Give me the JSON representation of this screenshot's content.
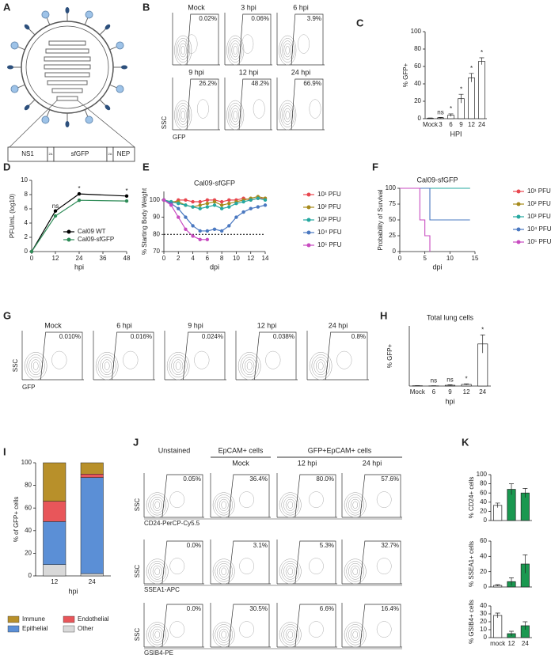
{
  "panel_labels": [
    "A",
    "B",
    "C",
    "D",
    "E",
    "F",
    "G",
    "H",
    "I",
    "J",
    "K"
  ],
  "diagram": {
    "segments": [
      "NS1",
      "2A",
      "sfGFP",
      "2A",
      "NEP"
    ]
  },
  "flow_panels": [
    {
      "x_label": "GFP",
      "y_label": "SSC",
      "plots": [
        {
          "title": "Mock",
          "percent": "0.02%"
        },
        {
          "title": "3 hpi",
          "percent": "0.06%"
        },
        {
          "title": "6 hpi",
          "percent": "3.9%"
        },
        {
          "title": "9 hpi",
          "percent": "26.2%"
        },
        {
          "title": "12 hpi",
          "percent": "48.2%"
        },
        {
          "title": "24 hpi",
          "percent": "66.9%"
        }
      ]
    },
    {
      "x_label": "GFP",
      "y_label": "SSC",
      "plots": [
        {
          "title": "Mock",
          "percent": "0.010%"
        },
        {
          "title": "6 hpi",
          "percent": "0.016%"
        },
        {
          "title": "9 hpi",
          "percent": "0.024%"
        },
        {
          "title": "12 hpi",
          "percent": "0.038%"
        },
        {
          "title": "24 hpi",
          "percent": "0.8%"
        }
      ]
    },
    {
      "headers": [
        "Unstained",
        "EpCAM+ cells",
        "GFP+EpCAM+ cells"
      ],
      "subheaders": [
        "Mock",
        "12 hpi",
        "24 hpi"
      ],
      "y_label": "SSC",
      "rows": [
        {
          "x_label": "CD24-PerCP-Cy5.5",
          "percents": [
            "0.05%",
            "36.4%",
            "80.0%",
            "57.6%"
          ]
        },
        {
          "x_label": "SSEA1-APC",
          "percents": [
            "0.0%",
            "3.1%",
            "5.3%",
            "32.7%"
          ]
        },
        {
          "x_label": "GSIB4-PE",
          "percents": [
            "0.0%",
            "30.5%",
            "6.6%",
            "16.4%"
          ]
        }
      ]
    }
  ],
  "chart_data": [
    {
      "type": "bar",
      "y_label": "% GFP+",
      "x_label": "HPI",
      "categories": [
        "Mock",
        "3",
        "6",
        "9",
        "12",
        "24"
      ],
      "values": [
        0.5,
        1,
        4,
        23,
        47,
        66
      ],
      "errors": [
        0.3,
        0.5,
        1.5,
        5,
        5,
        4
      ],
      "significance": [
        null,
        "ns",
        "*",
        "*",
        "*",
        "*"
      ],
      "color": "#ffffff",
      "ylim": [
        0,
        100
      ],
      "yticks": [
        0,
        20,
        40,
        60,
        80,
        100
      ]
    },
    {
      "type": "line",
      "y_label": "PFU/mL (log10)",
      "x_label": "hpi",
      "x": [
        0,
        12,
        24,
        48
      ],
      "series": [
        {
          "name": "Cal09 WT",
          "color": "#000000",
          "values": [
            0,
            5.7,
            8.1,
            7.8
          ]
        },
        {
          "name": "Cal09-sfGFP",
          "color": "#2e8b57",
          "values": [
            0,
            5,
            7.2,
            7.1
          ]
        }
      ],
      "significance": [
        null,
        "ns",
        "*",
        "*"
      ],
      "xlim": [
        0,
        48
      ],
      "xticks": [
        0,
        12,
        24,
        36,
        48
      ],
      "ylim": [
        0,
        10
      ],
      "yticks": [
        0,
        2,
        4,
        6,
        8,
        10
      ],
      "legend": "lower-right"
    },
    {
      "type": "line",
      "title": "Cal09-sfGFP",
      "y_label": "% Starting Body Weight",
      "x_label": "dpi",
      "x": [
        0,
        1,
        2,
        3,
        4,
        5,
        6,
        7,
        8,
        9,
        10,
        11,
        12,
        13,
        14
      ],
      "series": [
        {
          "name": "10¹ PFU",
          "color": "#e8474f",
          "values": [
            100,
            98,
            100,
            100,
            99,
            99,
            100,
            100,
            99,
            100,
            100,
            101,
            100,
            101,
            101
          ]
        },
        {
          "name": "10² PFU",
          "color": "#a68a1c",
          "values": [
            100,
            99,
            99,
            97,
            96,
            97,
            98,
            99,
            97,
            98,
            99,
            100,
            101,
            102,
            101
          ]
        },
        {
          "name": "10³ PFU",
          "color": "#25a8a0",
          "values": [
            100,
            99,
            98,
            97,
            96,
            95,
            96,
            97,
            95,
            96,
            98,
            99,
            100,
            101,
            100
          ]
        },
        {
          "name": "10⁴ PFU",
          "color": "#4a78c0",
          "values": [
            100,
            98,
            95,
            90,
            85,
            82,
            82,
            83,
            82,
            85,
            90,
            93,
            95,
            96,
            97
          ]
        },
        {
          "name": "10⁵ PFU",
          "color": "#c84bc0",
          "values": [
            100,
            97,
            90,
            83,
            79,
            77,
            77,
            null,
            null,
            null,
            null,
            null,
            null,
            null,
            null
          ]
        }
      ],
      "reference_line": 80,
      "xlim": [
        0,
        14
      ],
      "xticks": [
        0,
        2,
        4,
        6,
        8,
        10,
        12,
        14
      ],
      "ylim": [
        70,
        105
      ],
      "yticks": [
        70,
        80,
        90,
        100
      ],
      "legend": "right"
    },
    {
      "type": "step",
      "title": "Cal09-sfGFP",
      "y_label": "Probability of Survival",
      "x_label": "dpi",
      "x": [
        0,
        4,
        5,
        6,
        14
      ],
      "series": [
        {
          "name": "10¹ PFU",
          "color": "#e8474f",
          "values": [
            100,
            100,
            100,
            100,
            100
          ]
        },
        {
          "name": "10² PFU",
          "color": "#a68a1c",
          "values": [
            100,
            100,
            100,
            100,
            100
          ]
        },
        {
          "name": "10³ PFU",
          "color": "#25a8a0",
          "values": [
            100,
            100,
            100,
            100,
            100
          ]
        },
        {
          "name": "10⁴ PFU",
          "color": "#4a78c0",
          "values": [
            100,
            100,
            100,
            50,
            50
          ]
        },
        {
          "name": "10⁵ PFU",
          "color": "#c84bc0",
          "values": [
            100,
            50,
            25,
            0,
            null
          ]
        }
      ],
      "xlim": [
        0,
        15
      ],
      "xticks": [
        0,
        5,
        10,
        15
      ],
      "ylim": [
        0,
        100
      ],
      "yticks": [
        0,
        25,
        50,
        75,
        100
      ],
      "legend": "right"
    },
    {
      "type": "bar",
      "title": "Total lung cells",
      "y_label": "% GFP+",
      "x_label": "hpi",
      "categories": [
        "Mock",
        "6",
        "9",
        "12",
        "24"
      ],
      "values": [
        0.005,
        0.003,
        0.013,
        0.027,
        0.7
      ],
      "errors": [
        0.002,
        0.002,
        0.008,
        0.01,
        0.15
      ],
      "significance": [
        null,
        "ns",
        "ns",
        "*",
        "*"
      ],
      "color": "#ffffff",
      "ylim": [
        0,
        1
      ]
    },
    {
      "type": "stacked_bar",
      "y_label": "% of GFP+ cells",
      "x_label": "hpi",
      "categories": [
        "12",
        "24"
      ],
      "series": [
        {
          "name": "Immune",
          "color": "#b8902a",
          "values": [
            34,
            10
          ]
        },
        {
          "name": "Endothelial",
          "color": "#e8565a",
          "values": [
            18,
            3
          ]
        },
        {
          "name": "Epithelial",
          "color": "#5b8fd6",
          "values": [
            38,
            85
          ]
        },
        {
          "name": "Other",
          "color": "#d9d9d9",
          "values": [
            10,
            2
          ]
        }
      ],
      "ylim": [
        0,
        100
      ],
      "yticks": [
        0,
        20,
        40,
        60,
        80,
        100
      ],
      "legend": "bottom"
    },
    {
      "type": "bar",
      "y_label": "% CD24+ cells",
      "categories": [
        null,
        null,
        null
      ],
      "values": [
        33,
        68,
        60
      ],
      "errors": [
        5,
        12,
        10
      ],
      "colors": [
        "#ffffff",
        "#1a9850",
        "#1a9850"
      ],
      "ylim": [
        0,
        100
      ],
      "yticks": [
        0,
        20,
        40,
        60,
        80,
        100
      ]
    },
    {
      "type": "bar",
      "y_label": "% SSEA1+ cells",
      "categories": [
        null,
        null,
        null
      ],
      "values": [
        2,
        7,
        30
      ],
      "errors": [
        1,
        5,
        12
      ],
      "colors": [
        "#ffffff",
        "#1a9850",
        "#1a9850"
      ],
      "ylim": [
        0,
        60
      ],
      "yticks": [
        0,
        20,
        40,
        60
      ]
    },
    {
      "type": "bar",
      "y_label": "% GSIB4+ cells",
      "categories": [
        "mock",
        "12",
        "24"
      ],
      "values": [
        28,
        5,
        15
      ],
      "errors": [
        3,
        3,
        5
      ],
      "colors": [
        "#ffffff",
        "#1a9850",
        "#1a9850"
      ],
      "ylim": [
        0,
        40
      ],
      "yticks": [
        0,
        10,
        20,
        30,
        40
      ]
    }
  ]
}
